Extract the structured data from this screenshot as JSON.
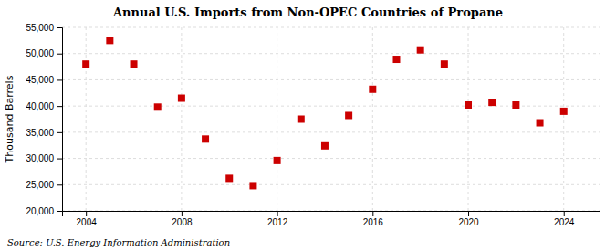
{
  "chart_data": {
    "type": "scatter",
    "title": "Annual U.S. Imports from Non-OPEC Countries of Propane",
    "ylabel": "Thousand Barrels",
    "annotation": "Source: U.S. Energy Information Administration",
    "x": [
      2004,
      2005,
      2006,
      2007,
      2008,
      2009,
      2010,
      2011,
      2012,
      2013,
      2014,
      2015,
      2016,
      2017,
      2018,
      2019,
      2020,
      2021,
      2022,
      2023,
      2024
    ],
    "values": [
      48000,
      52500,
      48000,
      39800,
      41500,
      33700,
      26200,
      24800,
      29600,
      37500,
      32400,
      38200,
      43200,
      48900,
      50700,
      48000,
      40200,
      40700,
      40200,
      36800,
      39000
    ],
    "xlim": [
      2003.0,
      2025.5
    ],
    "xticks": [
      2004,
      2008,
      2012,
      2016,
      2020,
      2024
    ],
    "ylim": [
      20000,
      55000
    ],
    "yticks": [
      {
        "value": 20000,
        "label": "20,000"
      },
      {
        "value": 25000,
        "label": "25,000"
      },
      {
        "value": 30000,
        "label": "30,000"
      },
      {
        "value": 35000,
        "label": "35,000"
      },
      {
        "value": 40000,
        "label": "40,000"
      },
      {
        "value": 45000,
        "label": "45,000"
      },
      {
        "value": 50000,
        "label": "50,000"
      },
      {
        "value": 55000,
        "label": "55,000"
      }
    ],
    "color": "#cc0000",
    "marker": "square",
    "grid": true
  }
}
